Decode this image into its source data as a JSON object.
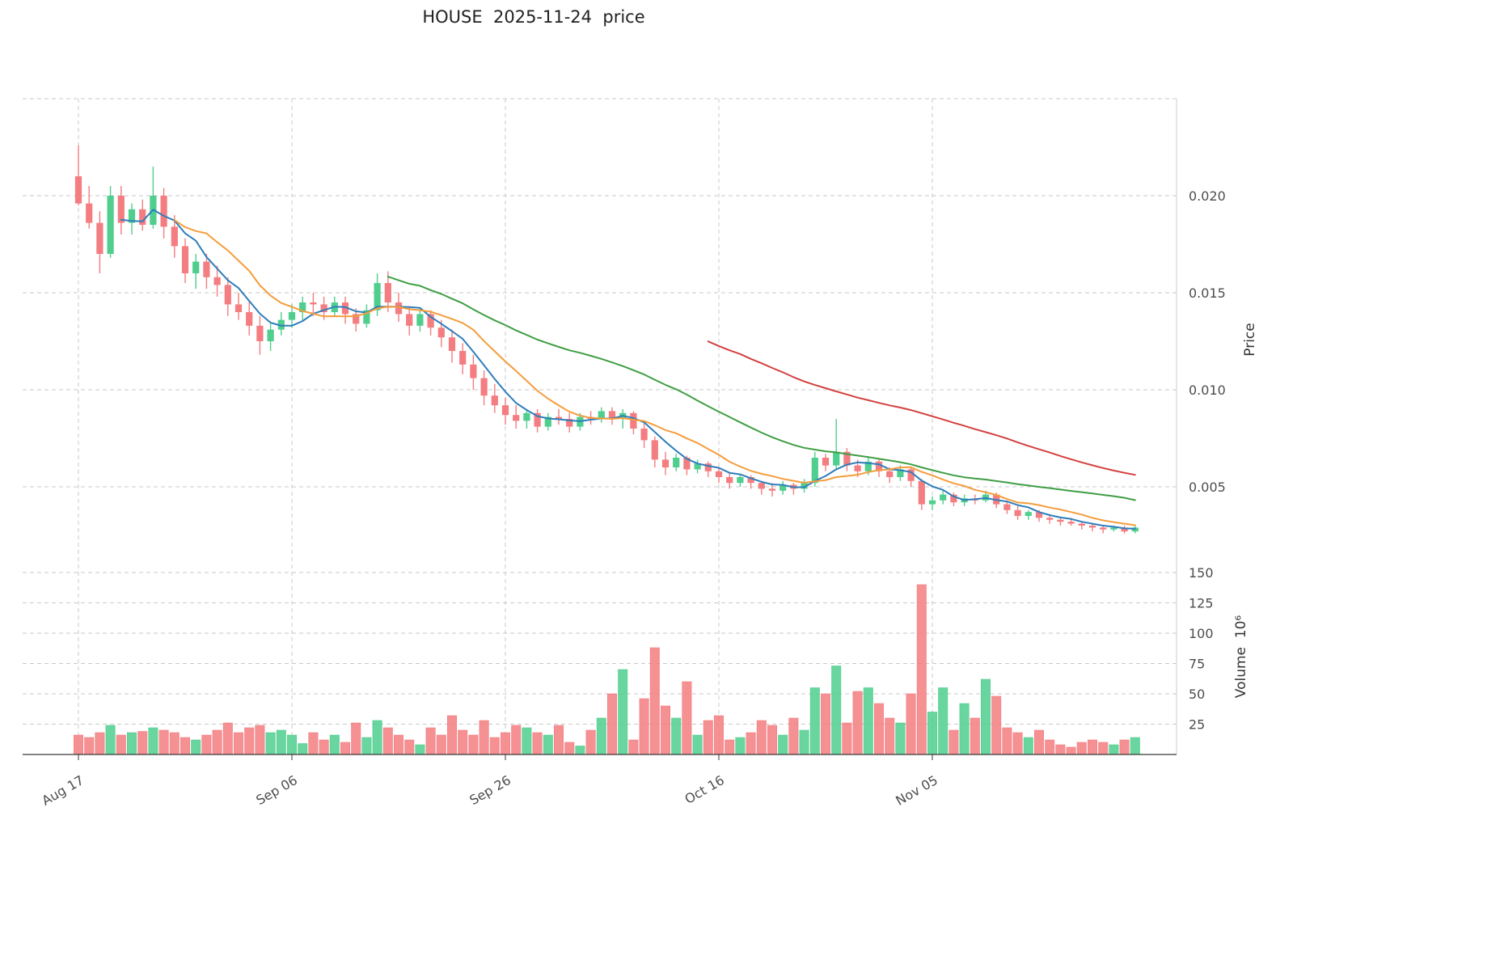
{
  "chart_data": {
    "type": "candlestick",
    "title": "HOUSE  2025-11-24  price",
    "legend": null,
    "grid": "dashed",
    "up_color": "#4fce8e",
    "down_color": "#f37d80",
    "price_axis": {
      "label": "Price",
      "side": "right",
      "ticks": [
        {
          "value": 0.005,
          "label": "0.005"
        },
        {
          "value": 0.01,
          "label": "0.010"
        },
        {
          "value": 0.015,
          "label": "0.015"
        },
        {
          "value": 0.02,
          "label": "0.020"
        }
      ],
      "grid_values": [
        0.005,
        0.01,
        0.015,
        0.02,
        0.025
      ],
      "range": [
        0.002,
        0.025
      ]
    },
    "volume_axis": {
      "label": "Volume  10⁶",
      "side": "right",
      "ticks": [
        {
          "value": 25,
          "label": "25"
        },
        {
          "value": 50,
          "label": "50"
        },
        {
          "value": 75,
          "label": "75"
        },
        {
          "value": 100,
          "label": "100"
        },
        {
          "value": 125,
          "label": "125"
        },
        {
          "value": 150,
          "label": "150"
        }
      ],
      "range": [
        0,
        155
      ]
    },
    "x_ticks": [
      {
        "index": 0,
        "label": "Aug 17"
      },
      {
        "index": 20,
        "label": "Sep 06"
      },
      {
        "index": 40,
        "label": "Sep 26"
      },
      {
        "index": 60,
        "label": "Oct 16"
      },
      {
        "index": 80,
        "label": "Nov 05"
      }
    ],
    "moving_averages": [
      {
        "window": 5,
        "color": "#2e7ebb"
      },
      {
        "window": 10,
        "color": "#f59d3d"
      },
      {
        "window": 30,
        "color": "#3f9e44"
      },
      {
        "window": 60,
        "color": "#d44040"
      }
    ],
    "columns": [
      "date",
      "open",
      "high",
      "low",
      "close",
      "volume_millions"
    ],
    "ohlcv": [
      [
        "2025-08-17",
        0.021,
        0.0226,
        0.0195,
        0.0196,
        16
      ],
      [
        "2025-08-18",
        0.0196,
        0.0205,
        0.0183,
        0.0186,
        14
      ],
      [
        "2025-08-19",
        0.0186,
        0.0192,
        0.016,
        0.017,
        18
      ],
      [
        "2025-08-20",
        0.017,
        0.0205,
        0.0168,
        0.02,
        24
      ],
      [
        "2025-08-21",
        0.02,
        0.0205,
        0.018,
        0.0186,
        16
      ],
      [
        "2025-08-22",
        0.0186,
        0.0196,
        0.018,
        0.0193,
        18
      ],
      [
        "2025-08-23",
        0.0193,
        0.0198,
        0.0182,
        0.0185,
        19
      ],
      [
        "2025-08-24",
        0.0185,
        0.0215,
        0.0183,
        0.02,
        22
      ],
      [
        "2025-08-25",
        0.02,
        0.0204,
        0.0178,
        0.0184,
        20
      ],
      [
        "2025-08-26",
        0.0184,
        0.019,
        0.0168,
        0.0174,
        18
      ],
      [
        "2025-08-27",
        0.0174,
        0.0178,
        0.0155,
        0.016,
        14
      ],
      [
        "2025-08-28",
        0.016,
        0.017,
        0.0152,
        0.0166,
        12
      ],
      [
        "2025-08-29",
        0.0166,
        0.017,
        0.0152,
        0.0158,
        16
      ],
      [
        "2025-08-30",
        0.0158,
        0.0164,
        0.0148,
        0.0154,
        20
      ],
      [
        "2025-08-31",
        0.0154,
        0.0158,
        0.0138,
        0.0144,
        26
      ],
      [
        "2025-09-01",
        0.0144,
        0.015,
        0.0136,
        0.014,
        18
      ],
      [
        "2025-09-02",
        0.014,
        0.0146,
        0.0128,
        0.0133,
        22
      ],
      [
        "2025-09-03",
        0.0133,
        0.0138,
        0.0118,
        0.0125,
        24
      ],
      [
        "2025-09-04",
        0.0125,
        0.0134,
        0.012,
        0.0131,
        18
      ],
      [
        "2025-09-05",
        0.0131,
        0.014,
        0.0128,
        0.0136,
        20
      ],
      [
        "2025-09-06",
        0.0136,
        0.0144,
        0.0132,
        0.014,
        16
      ],
      [
        "2025-09-07",
        0.014,
        0.0148,
        0.0136,
        0.0145,
        9
      ],
      [
        "2025-09-08",
        0.0145,
        0.015,
        0.0138,
        0.0144,
        18
      ],
      [
        "2025-09-09",
        0.0144,
        0.0148,
        0.0136,
        0.014,
        12
      ],
      [
        "2025-09-10",
        0.014,
        0.0148,
        0.0138,
        0.0145,
        16
      ],
      [
        "2025-09-11",
        0.0145,
        0.0148,
        0.0134,
        0.0139,
        10
      ],
      [
        "2025-09-12",
        0.0139,
        0.0142,
        0.013,
        0.0134,
        26
      ],
      [
        "2025-09-13",
        0.0134,
        0.0144,
        0.0132,
        0.0141,
        14
      ],
      [
        "2025-09-14",
        0.0141,
        0.016,
        0.0138,
        0.0155,
        28
      ],
      [
        "2025-09-15",
        0.0155,
        0.0161,
        0.014,
        0.0145,
        22
      ],
      [
        "2025-09-16",
        0.0145,
        0.015,
        0.0135,
        0.0139,
        16
      ],
      [
        "2025-09-17",
        0.0139,
        0.0143,
        0.0128,
        0.0133,
        12
      ],
      [
        "2025-09-18",
        0.0133,
        0.0142,
        0.013,
        0.0139,
        8
      ],
      [
        "2025-09-19",
        0.0139,
        0.0141,
        0.0128,
        0.0132,
        22
      ],
      [
        "2025-09-20",
        0.0132,
        0.0136,
        0.0122,
        0.0127,
        16
      ],
      [
        "2025-09-21",
        0.0127,
        0.0131,
        0.0114,
        0.012,
        32
      ],
      [
        "2025-09-22",
        0.012,
        0.0124,
        0.0108,
        0.0113,
        20
      ],
      [
        "2025-09-23",
        0.0113,
        0.0118,
        0.01,
        0.0106,
        16
      ],
      [
        "2025-09-24",
        0.0106,
        0.011,
        0.0092,
        0.0097,
        28
      ],
      [
        "2025-09-25",
        0.0097,
        0.0103,
        0.0088,
        0.0092,
        14
      ],
      [
        "2025-09-26",
        0.0092,
        0.0096,
        0.0082,
        0.0087,
        18
      ],
      [
        "2025-09-27",
        0.0087,
        0.0092,
        0.008,
        0.0084,
        24
      ],
      [
        "2025-09-28",
        0.0084,
        0.009,
        0.008,
        0.0088,
        22
      ],
      [
        "2025-09-29",
        0.0088,
        0.009,
        0.0078,
        0.0081,
        18
      ],
      [
        "2025-09-30",
        0.0081,
        0.0088,
        0.0079,
        0.0086,
        16
      ],
      [
        "2025-10-01",
        0.0086,
        0.009,
        0.0082,
        0.0085,
        24
      ],
      [
        "2025-10-02",
        0.0085,
        0.0088,
        0.0078,
        0.0081,
        10
      ],
      [
        "2025-10-03",
        0.0081,
        0.0088,
        0.0079,
        0.0086,
        7
      ],
      [
        "2025-10-04",
        0.0086,
        0.0089,
        0.0082,
        0.0085,
        20
      ],
      [
        "2025-10-05",
        0.0085,
        0.0091,
        0.0083,
        0.0089,
        30
      ],
      [
        "2025-10-06",
        0.0089,
        0.0091,
        0.0082,
        0.0085,
        50
      ],
      [
        "2025-10-07",
        0.0085,
        0.009,
        0.008,
        0.0088,
        70
      ],
      [
        "2025-10-08",
        0.0088,
        0.0089,
        0.0077,
        0.008,
        12
      ],
      [
        "2025-10-09",
        0.008,
        0.0083,
        0.007,
        0.0074,
        46
      ],
      [
        "2025-10-10",
        0.0074,
        0.0076,
        0.006,
        0.0064,
        88
      ],
      [
        "2025-10-11",
        0.0064,
        0.0068,
        0.0056,
        0.006,
        40
      ],
      [
        "2025-10-12",
        0.006,
        0.0067,
        0.0058,
        0.0065,
        30
      ],
      [
        "2025-10-13",
        0.0065,
        0.0066,
        0.0056,
        0.0059,
        60
      ],
      [
        "2025-10-14",
        0.0059,
        0.0064,
        0.0057,
        0.0062,
        16
      ],
      [
        "2025-10-15",
        0.0062,
        0.0063,
        0.0055,
        0.0058,
        28
      ],
      [
        "2025-10-16",
        0.0058,
        0.006,
        0.0052,
        0.0055,
        32
      ],
      [
        "2025-10-17",
        0.0055,
        0.0057,
        0.0049,
        0.0052,
        12
      ],
      [
        "2025-10-18",
        0.0052,
        0.0056,
        0.005,
        0.0055,
        14
      ],
      [
        "2025-10-19",
        0.0055,
        0.0056,
        0.0049,
        0.0052,
        18
      ],
      [
        "2025-10-20",
        0.0052,
        0.0053,
        0.0046,
        0.0049,
        28
      ],
      [
        "2025-10-21",
        0.0049,
        0.0052,
        0.0045,
        0.0048,
        24
      ],
      [
        "2025-10-22",
        0.0048,
        0.0053,
        0.0046,
        0.0051,
        16
      ],
      [
        "2025-10-23",
        0.0051,
        0.0052,
        0.0046,
        0.0049,
        30
      ],
      [
        "2025-10-24",
        0.0049,
        0.0054,
        0.0047,
        0.0052,
        20
      ],
      [
        "2025-10-25",
        0.0052,
        0.0068,
        0.005,
        0.0065,
        55
      ],
      [
        "2025-10-26",
        0.0065,
        0.0067,
        0.0058,
        0.0061,
        50
      ],
      [
        "2025-10-27",
        0.0061,
        0.0085,
        0.0059,
        0.0068,
        73
      ],
      [
        "2025-10-28",
        0.0068,
        0.007,
        0.0058,
        0.0061,
        26
      ],
      [
        "2025-10-29",
        0.0061,
        0.0064,
        0.0055,
        0.0058,
        52
      ],
      [
        "2025-10-30",
        0.0058,
        0.0065,
        0.0056,
        0.0063,
        55
      ],
      [
        "2025-10-31",
        0.0063,
        0.0064,
        0.0055,
        0.0058,
        42
      ],
      [
        "2025-11-01",
        0.0058,
        0.006,
        0.0052,
        0.0055,
        30
      ],
      [
        "2025-11-02",
        0.0055,
        0.0061,
        0.0053,
        0.0059,
        26
      ],
      [
        "2025-11-03",
        0.0059,
        0.006,
        0.005,
        0.0053,
        50
      ],
      [
        "2025-11-04",
        0.0053,
        0.0054,
        0.0038,
        0.0041,
        140
      ],
      [
        "2025-11-05",
        0.0041,
        0.0045,
        0.0038,
        0.0043,
        35
      ],
      [
        "2025-11-06",
        0.0043,
        0.0048,
        0.0041,
        0.0046,
        55
      ],
      [
        "2025-11-07",
        0.0046,
        0.0047,
        0.004,
        0.0042,
        20
      ],
      [
        "2025-11-08",
        0.0042,
        0.0046,
        0.004,
        0.0044,
        42
      ],
      [
        "2025-11-09",
        0.0044,
        0.0046,
        0.0041,
        0.0043,
        30
      ],
      [
        "2025-11-10",
        0.0043,
        0.0048,
        0.0042,
        0.0046,
        62
      ],
      [
        "2025-11-11",
        0.0046,
        0.0047,
        0.0039,
        0.0041,
        48
      ],
      [
        "2025-11-12",
        0.0041,
        0.0043,
        0.0036,
        0.0038,
        22
      ],
      [
        "2025-11-13",
        0.0038,
        0.004,
        0.0033,
        0.0035,
        18
      ],
      [
        "2025-11-14",
        0.0035,
        0.0038,
        0.0033,
        0.0037,
        14
      ],
      [
        "2025-11-15",
        0.0037,
        0.0038,
        0.0032,
        0.0034,
        20
      ],
      [
        "2025-11-16",
        0.0034,
        0.0036,
        0.0031,
        0.0033,
        12
      ],
      [
        "2025-11-17",
        0.0033,
        0.0034,
        0.003,
        0.0032,
        8
      ],
      [
        "2025-11-18",
        0.0032,
        0.0034,
        0.003,
        0.0031,
        6
      ],
      [
        "2025-11-19",
        0.0031,
        0.0032,
        0.0028,
        0.003,
        10
      ],
      [
        "2025-11-20",
        0.003,
        0.0031,
        0.0027,
        0.0029,
        12
      ],
      [
        "2025-11-21",
        0.0029,
        0.003,
        0.0026,
        0.0028,
        10
      ],
      [
        "2025-11-22",
        0.0028,
        0.003,
        0.0027,
        0.0029,
        8
      ],
      [
        "2025-11-23",
        0.0029,
        0.003,
        0.0026,
        0.0027,
        12
      ],
      [
        "2025-11-24",
        0.0027,
        0.003,
        0.0026,
        0.0029,
        14
      ]
    ]
  }
}
